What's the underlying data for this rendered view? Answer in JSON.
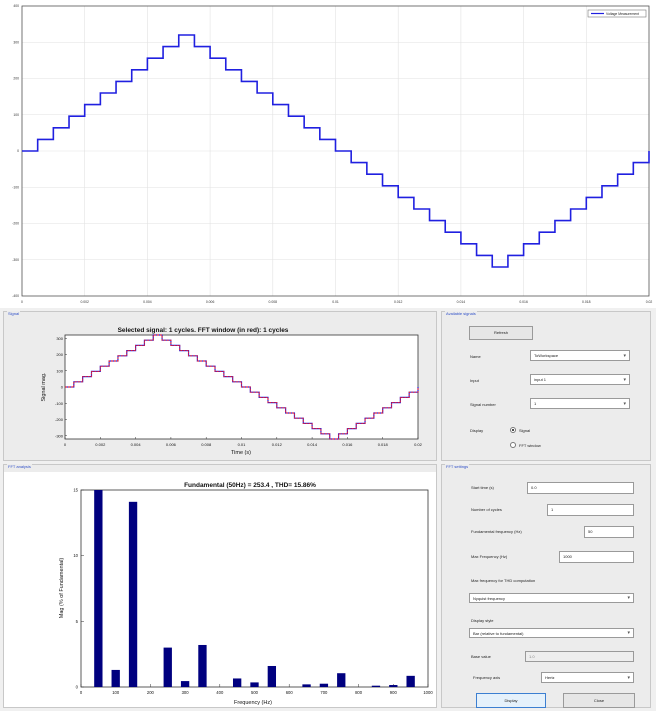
{
  "main_plot": {
    "legend": "Voltage Measurement",
    "y_ticks": [
      "400",
      "300",
      "200",
      "100",
      "0",
      "-100",
      "-200",
      "-300",
      "-400"
    ],
    "x_ticks": [
      "0",
      "0.002",
      "0.004",
      "0.006",
      "0.008",
      "0.01",
      "0.012",
      "0.014",
      "0.016",
      "0.018",
      "0.02"
    ],
    "line_color": "#2020e0"
  },
  "signal_panel": {
    "title": "Signal",
    "plot_title": "Selected signal: 1 cycles. FFT window (in red): 1 cycles",
    "y_label": "Signal mag.",
    "x_label": "Time (s)",
    "y_ticks": [
      "300",
      "200",
      "100",
      "0",
      "-100",
      "-200",
      "-300"
    ],
    "x_ticks": [
      "0",
      "0.002",
      "0.004",
      "0.006",
      "0.008",
      "0.01",
      "0.012",
      "0.014",
      "0.016",
      "0.018",
      "0.02"
    ]
  },
  "available_signals": {
    "title": "Available signals",
    "refresh_label": "Refresh",
    "name_label": "Name",
    "name_value": "ToWorkspace",
    "input_label": "Input",
    "input_value": "input 1",
    "signal_number_label": "Signal number",
    "signal_number_value": "1",
    "display_label": "Display",
    "display_options": [
      "Signal",
      "FFT window"
    ],
    "display_selected": "Signal"
  },
  "fft_panel": {
    "title": "FFT analysis",
    "plot_title": "Fundamental (50Hz) = 253.4 , THD= 15.86%",
    "y_label": "Mag (% of Fundamental)",
    "x_label": "Frequency (Hz)",
    "y_ticks": [
      "15",
      "10",
      "5",
      "0"
    ],
    "x_ticks": [
      "0",
      "100",
      "200",
      "300",
      "400",
      "500",
      "600",
      "700",
      "800",
      "900",
      "1000"
    ],
    "bar_color": "#00007f"
  },
  "fft_settings": {
    "title": "FFT settings",
    "start_time_label": "Start time (s)",
    "start_time_value": "0.0",
    "cycles_label": "Number of cycles",
    "cycles_value": "1",
    "fundamental_label": "Fundamental frequency (Hz)",
    "fundamental_value": "50",
    "max_freq_label": "Max Frequency (Hz)",
    "max_freq_value": "1000",
    "thd_label": "Max frequency for THD computation",
    "thd_value": "Nyquist frequency",
    "display_style_label": "Display style",
    "display_style_value": "Bar (relative to fundamental)",
    "base_value_label": "Base value",
    "base_value_value": "1.0",
    "freq_axis_label": "Frequency axis",
    "freq_axis_value": "Hertz",
    "display_button": "Display",
    "close_button": "Close"
  },
  "chart_data": [
    {
      "type": "line",
      "legend": [
        "Voltage Measurement"
      ],
      "xlim": [
        0,
        0.02
      ],
      "ylim": [
        -400,
        400
      ],
      "x": [
        0,
        0.0005,
        0.001,
        0.0015,
        0.002,
        0.0025,
        0.003,
        0.0035,
        0.004,
        0.0045,
        0.005,
        0.0055,
        0.006,
        0.0065,
        0.007,
        0.0075,
        0.008,
        0.0085,
        0.009,
        0.0095,
        0.01,
        0.0105,
        0.011,
        0.0115,
        0.012,
        0.0125,
        0.013,
        0.0135,
        0.014,
        0.0145,
        0.015,
        0.0155,
        0.016,
        0.0165,
        0.017,
        0.0175,
        0.018,
        0.0185,
        0.019,
        0.0195,
        0.02
      ],
      "y": [
        0,
        32,
        64,
        96,
        128,
        160,
        192,
        224,
        256,
        288,
        320,
        288,
        256,
        224,
        192,
        160,
        128,
        96,
        64,
        32,
        0,
        -32,
        -64,
        -96,
        -128,
        -160,
        -192,
        -224,
        -256,
        -288,
        -320,
        -288,
        -256,
        -224,
        -192,
        -160,
        -128,
        -96,
        -64,
        -32,
        0
      ]
    },
    {
      "type": "bar",
      "title": "Fundamental (50Hz) = 253.4 , THD= 15.86%",
      "xlabel": "Frequency (Hz)",
      "ylabel": "Mag (% of Fundamental)",
      "xlim": [
        0,
        1000
      ],
      "ylim": [
        0,
        15
      ],
      "x": [
        50,
        100,
        150,
        250,
        300,
        350,
        450,
        500,
        550,
        650,
        700,
        750,
        850,
        900,
        950
      ],
      "values": [
        15.5,
        1.3,
        14.1,
        3.0,
        0.45,
        3.2,
        0.65,
        0.35,
        1.6,
        0.2,
        0.25,
        1.05,
        0.1,
        0.15,
        0.85
      ]
    }
  ]
}
